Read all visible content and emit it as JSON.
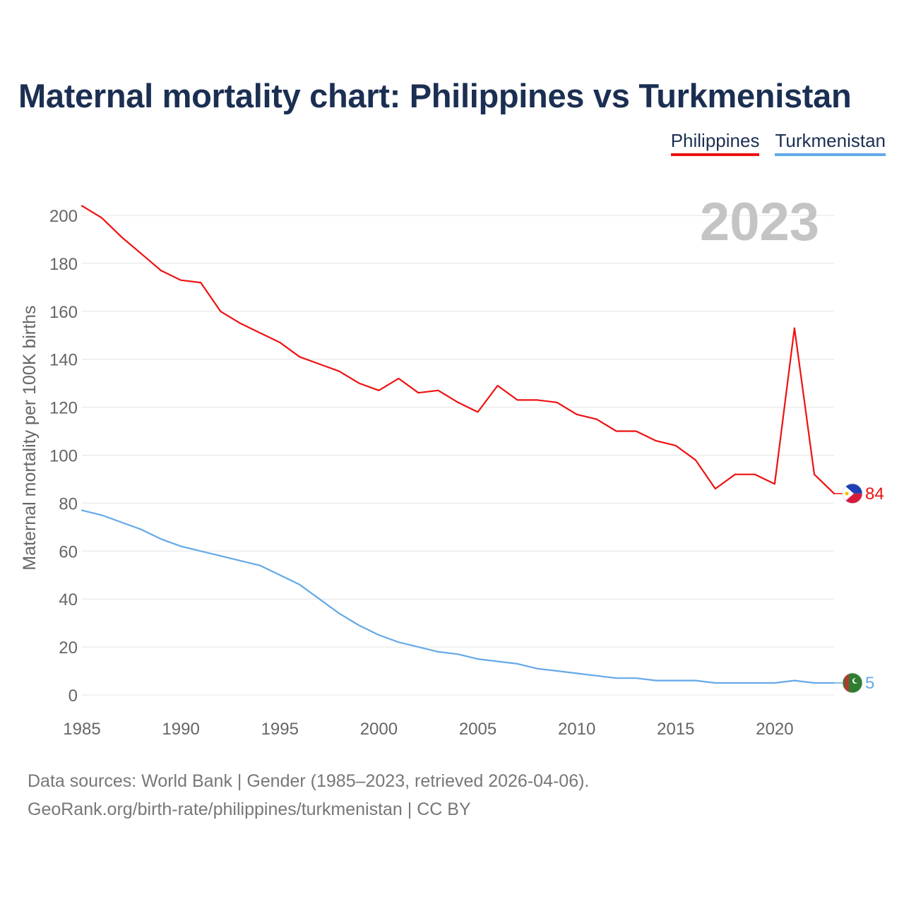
{
  "title": "Maternal mortality chart: Philippines vs Turkmenistan",
  "legend": {
    "items": [
      {
        "label": "Philippines",
        "color": "#ee1111"
      },
      {
        "label": "Turkmenistan",
        "color": "#64a9e8"
      }
    ]
  },
  "watermark_year": "2023",
  "footer": {
    "line1": "Data sources: World Bank | Gender (1985–2023, retrieved 2026-04-06).",
    "line2": "GeoRank.org/birth-rate/philippines/turkmenistan | CC BY"
  },
  "chart_data": {
    "type": "line",
    "title": "Maternal mortality chart: Philippines vs Turkmenistan",
    "xlabel": "",
    "ylabel": "Maternal mortality per 100K births",
    "xlim": [
      1985,
      2023
    ],
    "ylim": [
      0,
      200
    ],
    "x_ticks": [
      1985,
      1990,
      1995,
      2000,
      2005,
      2010,
      2015,
      2020
    ],
    "y_ticks": [
      0,
      20,
      40,
      60,
      80,
      100,
      120,
      140,
      160,
      180,
      200
    ],
    "grid": true,
    "legend_position": "top-right",
    "x": [
      1985,
      1986,
      1987,
      1988,
      1989,
      1990,
      1991,
      1992,
      1993,
      1994,
      1995,
      1996,
      1997,
      1998,
      1999,
      2000,
      2001,
      2002,
      2003,
      2004,
      2005,
      2006,
      2007,
      2008,
      2009,
      2010,
      2011,
      2012,
      2013,
      2014,
      2015,
      2016,
      2017,
      2018,
      2019,
      2020,
      2021,
      2022,
      2023
    ],
    "series": [
      {
        "name": "Philippines",
        "color": "#ee1111",
        "end_label": "84",
        "values": [
          204,
          199,
          191,
          184,
          177,
          173,
          172,
          160,
          155,
          151,
          147,
          141,
          138,
          135,
          130,
          127,
          132,
          126,
          127,
          122,
          118,
          129,
          123,
          123,
          122,
          117,
          115,
          110,
          110,
          106,
          104,
          98,
          86,
          92,
          92,
          88,
          153,
          92,
          84
        ]
      },
      {
        "name": "Turkmenistan",
        "color": "#64a9e8",
        "end_label": "5",
        "values": [
          77,
          75,
          72,
          69,
          65,
          62,
          60,
          58,
          56,
          54,
          50,
          46,
          40,
          34,
          29,
          25,
          22,
          20,
          18,
          17,
          15,
          14,
          13,
          11,
          10,
          9,
          8,
          7,
          7,
          6,
          6,
          6,
          5,
          5,
          5,
          5,
          6,
          5,
          5
        ]
      }
    ]
  }
}
